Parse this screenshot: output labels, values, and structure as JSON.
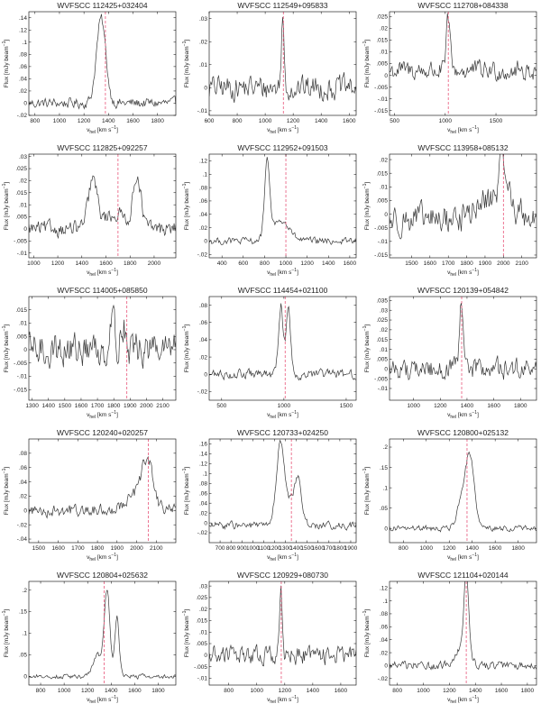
{
  "figure": {
    "ylabel_main": "Flux [mJy beam",
    "ylabel_exp": "−1",
    "ylabel_close": "]",
    "xlabel_v": "v",
    "xlabel_sub": "hel",
    "xlabel_units": "[km s",
    "xlabel_exp": "−1",
    "xlabel_close": "]"
  },
  "colors": {
    "spectrum": "#3a3a3a",
    "marker": "#e8567a",
    "axes": "#000000",
    "background": "#ffffff"
  },
  "chart_data": [
    {
      "type": "line",
      "title": "WVFSCC 112425+032404",
      "xlim": [
        750,
        1950
      ],
      "ylim": [
        -0.02,
        0.15
      ],
      "xticks": [
        800,
        1000,
        1200,
        1400,
        1600,
        1800
      ],
      "yticks": [
        -0.02,
        0,
        0.02,
        0.04,
        0.06,
        0.08,
        0.1,
        0.12,
        0.14
      ],
      "marker_v": 1375,
      "noise": 0.008,
      "baseline": 0.0,
      "components": [
        {
          "center": 1340,
          "amp": 0.138,
          "width": 38
        }
      ]
    },
    {
      "type": "line",
      "title": "WVFSCC 112549+095833",
      "xlim": [
        600,
        1650
      ],
      "ylim": [
        -0.012,
        0.033
      ],
      "xticks": [
        600,
        800,
        1000,
        1200,
        1400,
        1600
      ],
      "yticks": [
        -0.01,
        0,
        0.01,
        0.02,
        0.03
      ],
      "marker_v": 1130,
      "noise": 0.005,
      "baseline": 0.0,
      "components": [
        {
          "center": 1125,
          "amp": 0.029,
          "width": 10
        }
      ]
    },
    {
      "type": "line",
      "title": "WVFSCC 112708+084338",
      "xlim": [
        450,
        1900
      ],
      "ylim": [
        -0.017,
        0.027
      ],
      "xticks": [
        500,
        1000,
        1500
      ],
      "yticks": [
        -0.015,
        -0.01,
        -0.005,
        0,
        0.005,
        0.01,
        0.015,
        0.02,
        0.025
      ],
      "marker_v": 1030,
      "noise": 0.004,
      "baseline": 0.002,
      "components": [
        {
          "center": 1030,
          "amp": 0.022,
          "width": 18
        }
      ]
    },
    {
      "type": "line",
      "title": "WVFSCC 112825+092257",
      "xlim": [
        960,
        2180
      ],
      "ylim": [
        -0.012,
        0.031
      ],
      "xticks": [
        1000,
        1200,
        1400,
        1600,
        1800,
        2000
      ],
      "yticks": [
        -0.01,
        -0.005,
        0,
        0.005,
        0.01,
        0.015,
        0.02,
        0.025,
        0.03
      ],
      "marker_v": 1700,
      "noise": 0.003,
      "baseline": 0.0,
      "components": [
        {
          "center": 1490,
          "amp": 0.019,
          "width": 35
        },
        {
          "center": 1860,
          "amp": 0.021,
          "width": 30
        },
        {
          "center": 1680,
          "amp": 0.006,
          "width": 120
        }
      ]
    },
    {
      "type": "line",
      "title": "WVFSCC 112952+091503",
      "xlim": [
        280,
        1660
      ],
      "ylim": [
        -0.025,
        0.13
      ],
      "xticks": [
        400,
        600,
        800,
        1000,
        1200,
        1400,
        1600
      ],
      "yticks": [
        -0.02,
        0,
        0.02,
        0.04,
        0.06,
        0.08,
        0.1,
        0.12
      ],
      "marker_v": 1000,
      "noise": 0.005,
      "baseline": 0.0,
      "components": [
        {
          "center": 825,
          "amp": 0.11,
          "width": 25
        },
        {
          "center": 950,
          "amp": 0.03,
          "width": 80
        }
      ]
    },
    {
      "type": "line",
      "title": "WVFSCC 113958+085132",
      "xlim": [
        1380,
        2180
      ],
      "ylim": [
        -0.016,
        0.022
      ],
      "xticks": [
        1500,
        1600,
        1700,
        1800,
        1900,
        2000,
        2100
      ],
      "yticks": [
        -0.015,
        -0.01,
        -0.005,
        0,
        0.005,
        0.01,
        0.015,
        0.02
      ],
      "marker_v": 2000,
      "noise": 0.005,
      "baseline": -0.002,
      "components": [
        {
          "center": 2000,
          "amp": 0.016,
          "width": 20
        },
        {
          "center": 1960,
          "amp": 0.008,
          "width": 90
        }
      ]
    },
    {
      "type": "line",
      "title": "WVFSCC 114005+085850",
      "xlim": [
        1280,
        2180
      ],
      "ylim": [
        -0.019,
        0.02
      ],
      "xticks": [
        1300,
        1400,
        1500,
        1600,
        1700,
        1800,
        1900,
        2000,
        2100
      ],
      "yticks": [
        -0.015,
        -0.01,
        -0.005,
        0,
        0.005,
        0.01,
        0.015
      ],
      "marker_v": 1880,
      "noise": 0.006,
      "baseline": 0.0,
      "components": [
        {
          "center": 1790,
          "amp": 0.014,
          "width": 15
        },
        {
          "center": 1860,
          "amp": 0.01,
          "width": 15
        }
      ]
    },
    {
      "type": "line",
      "title": "WVFSCC 114454+021100",
      "xlim": [
        400,
        1580
      ],
      "ylim": [
        -0.03,
        0.09
      ],
      "xticks": [
        500,
        1000,
        1500
      ],
      "yticks": [
        -0.02,
        0,
        0.02,
        0.04,
        0.06,
        0.08
      ],
      "marker_v": 1010,
      "noise": 0.005,
      "baseline": 0.0,
      "components": [
        {
          "center": 975,
          "amp": 0.08,
          "width": 18
        },
        {
          "center": 1035,
          "amp": 0.078,
          "width": 18
        }
      ]
    },
    {
      "type": "line",
      "title": "WVFSCC 120139+054842",
      "xlim": [
        820,
        1920
      ],
      "ylim": [
        -0.016,
        0.037
      ],
      "xticks": [
        1000,
        1200,
        1400,
        1600,
        1800
      ],
      "yticks": [
        -0.01,
        -0.005,
        0,
        0.005,
        0.01,
        0.015,
        0.02,
        0.025,
        0.03,
        0.035
      ],
      "marker_v": 1360,
      "noise": 0.005,
      "baseline": 0.0,
      "components": [
        {
          "center": 1358,
          "amp": 0.032,
          "width": 14
        }
      ]
    },
    {
      "type": "line",
      "title": "WVFSCC 120240+020257",
      "xlim": [
        1450,
        2200
      ],
      "ylim": [
        -0.045,
        0.1
      ],
      "xticks": [
        1500,
        1600,
        1700,
        1800,
        1900,
        2000,
        2100
      ],
      "yticks": [
        -0.04,
        -0.02,
        0,
        0.02,
        0.04,
        0.06,
        0.08
      ],
      "marker_v": 2060,
      "noise": 0.008,
      "baseline": 0.0,
      "components": [
        {
          "center": 2055,
          "amp": 0.06,
          "width": 28
        },
        {
          "center": 2000,
          "amp": 0.02,
          "width": 60
        }
      ]
    },
    {
      "type": "line",
      "title": "WVFSCC 120733+024250",
      "xlim": [
        600,
        1950
      ],
      "ylim": [
        -0.04,
        0.17
      ],
      "xticks": [
        700,
        800,
        900,
        1000,
        1100,
        1200,
        1300,
        1400,
        1500,
        1600,
        1700,
        1800,
        1900
      ],
      "yticks": [
        -0.02,
        0,
        0.02,
        0.04,
        0.06,
        0.08,
        0.1,
        0.12,
        0.14,
        0.16
      ],
      "marker_v": 1355,
      "noise": 0.007,
      "baseline": -0.005,
      "components": [
        {
          "center": 1250,
          "amp": 0.15,
          "width": 35
        },
        {
          "center": 1420,
          "amp": 0.08,
          "width": 30
        },
        {
          "center": 1340,
          "amp": 0.05,
          "width": 60
        }
      ]
    },
    {
      "type": "line",
      "title": "WVFSCC 120800+025132",
      "xlim": [
        680,
        1960
      ],
      "ylim": [
        -0.035,
        0.22
      ],
      "xticks": [
        800,
        1000,
        1200,
        1400,
        1600,
        1800
      ],
      "yticks": [
        0,
        0.05,
        0.1,
        0.15,
        0.2
      ],
      "marker_v": 1355,
      "noise": 0.007,
      "baseline": 0.0,
      "components": [
        {
          "center": 1380,
          "amp": 0.18,
          "width": 40
        },
        {
          "center": 1300,
          "amp": 0.05,
          "width": 40
        }
      ]
    },
    {
      "type": "line",
      "title": "WVFSCC 120804+025632",
      "xlim": [
        700,
        1950
      ],
      "ylim": [
        -0.02,
        0.22
      ],
      "xticks": [
        800,
        1000,
        1200,
        1400,
        1600,
        1800
      ],
      "yticks": [
        0,
        0.05,
        0.1,
        0.15,
        0.2
      ],
      "marker_v": 1340,
      "noise": 0.005,
      "baseline": 0.0,
      "components": [
        {
          "center": 1365,
          "amp": 0.2,
          "width": 24
        },
        {
          "center": 1450,
          "amp": 0.14,
          "width": 18
        },
        {
          "center": 1280,
          "amp": 0.05,
          "width": 35
        }
      ]
    },
    {
      "type": "line",
      "title": "WVFSCC 120929+080730",
      "xlim": [
        660,
        1710
      ],
      "ylim": [
        -0.013,
        0.032
      ],
      "xticks": [
        800,
        1000,
        1200,
        1400,
        1600
      ],
      "yticks": [
        -0.01,
        -0.005,
        0,
        0.005,
        0.01,
        0.015,
        0.02,
        0.025,
        0.03
      ],
      "marker_v": 1175,
      "noise": 0.004,
      "baseline": 0.0,
      "components": [
        {
          "center": 1172,
          "amp": 0.027,
          "width": 10
        }
      ]
    },
    {
      "type": "line",
      "title": "WVFSCC 121104+020144",
      "xlim": [
        740,
        1870
      ],
      "ylim": [
        -0.03,
        0.13
      ],
      "xticks": [
        800,
        1000,
        1200,
        1400,
        1600,
        1800
      ],
      "yticks": [
        -0.02,
        0,
        0.02,
        0.04,
        0.06,
        0.08,
        0.1,
        0.12
      ],
      "marker_v": 1330,
      "noise": 0.006,
      "baseline": 0.0,
      "components": [
        {
          "center": 1330,
          "amp": 0.118,
          "width": 18
        },
        {
          "center": 1300,
          "amp": 0.03,
          "width": 50
        }
      ]
    }
  ]
}
